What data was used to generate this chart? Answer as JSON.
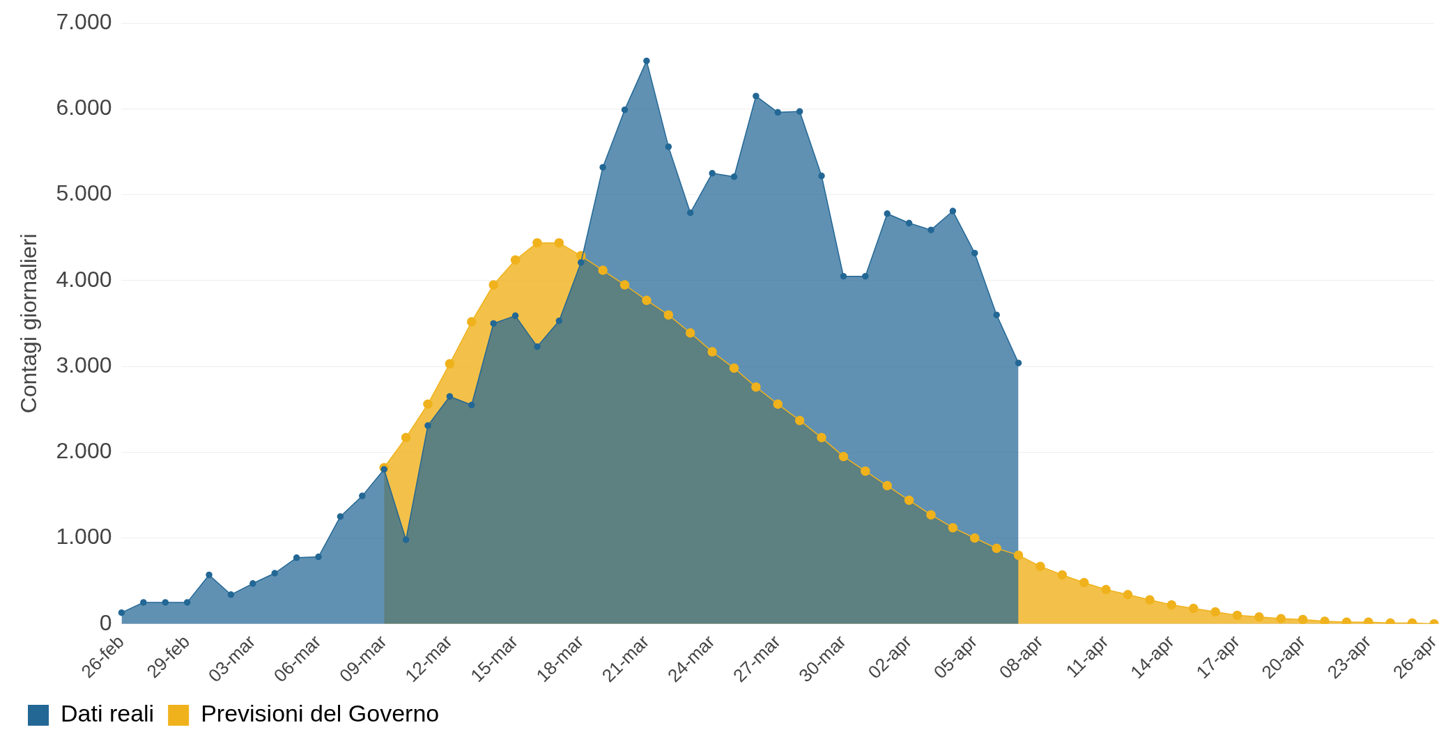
{
  "chart_data": {
    "type": "area",
    "ylabel": "Contagi giornalieri",
    "categories": [
      "26-feb",
      null,
      null,
      "29-feb",
      null,
      null,
      "03-mar",
      null,
      null,
      "06-mar",
      null,
      null,
      "09-mar",
      null,
      null,
      "12-mar",
      null,
      null,
      "15-mar",
      null,
      null,
      "18-mar",
      null,
      null,
      "21-mar",
      null,
      null,
      "24-mar",
      null,
      null,
      "27-mar",
      null,
      null,
      "30-mar",
      null,
      null,
      "02-apr",
      null,
      null,
      "05-apr",
      null,
      null,
      "08-apr",
      null,
      null,
      "11-apr",
      null,
      null,
      "14-apr",
      null,
      null,
      "17-apr",
      null,
      null,
      "20-apr",
      null,
      null,
      "23-apr",
      null,
      null,
      "26-apr"
    ],
    "series": [
      {
        "name": "Dati reali",
        "color": "#236795",
        "values": [
          130,
          250,
          250,
          250,
          570,
          340,
          470,
          590,
          770,
          780,
          1250,
          1490,
          1800,
          980,
          2310,
          2650,
          2550,
          3500,
          3590,
          3230,
          3530,
          4210,
          5320,
          5990,
          6560,
          5560,
          4790,
          5250,
          5210,
          6150,
          5960,
          5970,
          5220,
          4050,
          4050,
          4780,
          4670,
          4590,
          4810,
          4320,
          3600,
          3040,
          null,
          null,
          null,
          null,
          null,
          null,
          null,
          null,
          null,
          null,
          null,
          null,
          null,
          null,
          null,
          null,
          null,
          null,
          null
        ]
      },
      {
        "name": "Previsioni del Governo",
        "color": "#f0b21c",
        "values": [
          null,
          null,
          null,
          null,
          null,
          null,
          null,
          null,
          null,
          null,
          null,
          null,
          1820,
          2170,
          2560,
          3030,
          3520,
          3950,
          4240,
          4440,
          4440,
          4290,
          4120,
          3950,
          3770,
          3600,
          3390,
          3170,
          2980,
          2760,
          2560,
          2370,
          2170,
          1950,
          1780,
          1610,
          1440,
          1270,
          1120,
          1000,
          880,
          800,
          670,
          570,
          480,
          400,
          340,
          280,
          220,
          180,
          140,
          100,
          80,
          60,
          50,
          30,
          20,
          20,
          10,
          10,
          0
        ]
      }
    ],
    "ylim": [
      0,
      7000
    ],
    "yticks": [
      0,
      {
        "value": 1000,
        "label": "1.000"
      },
      {
        "value": 2000,
        "label": "2.000"
      },
      {
        "value": 3000,
        "label": "3.000"
      },
      {
        "value": 4000,
        "label": "4.000"
      },
      {
        "value": 5000,
        "label": "5.000"
      },
      {
        "value": 6000,
        "label": "6.000"
      },
      {
        "value": 7000,
        "label": "7.000"
      }
    ],
    "grid": "y",
    "legend": "bottom left",
    "marker": "circle"
  }
}
